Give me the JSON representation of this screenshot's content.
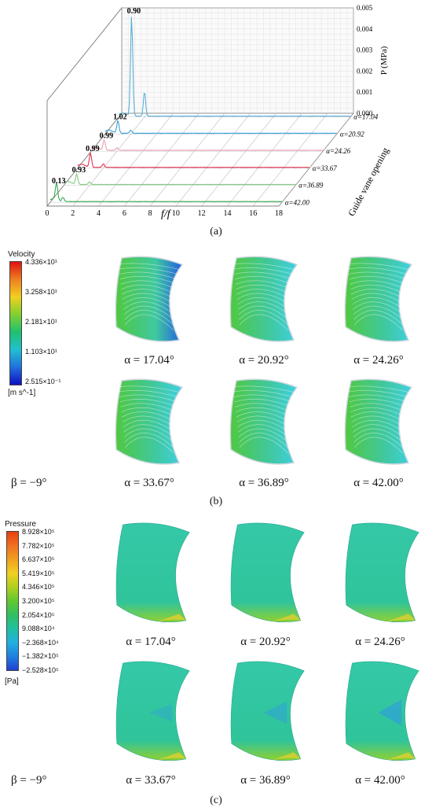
{
  "chart_data": {
    "type": "line",
    "subtype": "waterfall-3d",
    "x_axis": {
      "label": "f/f_r",
      "ticks": [
        "0",
        "2",
        "4",
        "6",
        "8",
        "10",
        "12",
        "14",
        "16",
        "18"
      ],
      "range": [
        0,
        18
      ]
    },
    "z_axis": {
      "label": "P (MPa)",
      "ticks": [
        "0.000",
        "0.001",
        "0.002",
        "0.003",
        "0.004",
        "0.005"
      ],
      "range": [
        0,
        0.005
      ]
    },
    "depth_axis": {
      "label": "Guide vane opening"
    },
    "series": [
      {
        "name": "α=17.04",
        "color": "#5aaed6",
        "peak_x": 1.0,
        "peak_y": 0.0048,
        "peak_label": "0.90"
      },
      {
        "name": "α=20.92",
        "color": "#3aa0d8",
        "peak_x": 1.0,
        "peak_y": 0.0006,
        "peak_label": "1.02"
      },
      {
        "name": "α=24.26",
        "color": "#e8a0b0",
        "peak_x": 1.0,
        "peak_y": 0.0005,
        "peak_label": "0.99"
      },
      {
        "name": "α=33.67",
        "color": "#e03550",
        "peak_x": 1.0,
        "peak_y": 0.0007,
        "peak_label": "0.99"
      },
      {
        "name": "α=36.89",
        "color": "#80cc80",
        "peak_x": 1.0,
        "peak_y": 0.0005,
        "peak_label": "0.93"
      },
      {
        "name": "α=42.00",
        "color": "#3aaa50",
        "peak_x": 0.5,
        "peak_y": 0.0008,
        "peak_label": "0.13"
      }
    ]
  },
  "labels": {
    "a": "(a)",
    "b": "(b)",
    "c": "(c)"
  },
  "velocity_legend": {
    "title": "Velocity",
    "ticks": [
      "4.336×10¹",
      "3.258×10¹",
      "2.181×10¹",
      "1.103×10¹",
      "2.515×10⁻¹"
    ],
    "unit": "[m s^-1]"
  },
  "pressure_legend": {
    "title": "Pressure",
    "ticks": [
      "8.928×10⁵",
      "7.782×10⁵",
      "6.637×10⁵",
      "5.419×10⁵",
      "4.346×10⁵",
      "3.200×10⁵",
      "2.054×10⁵",
      "9.088×10⁴",
      "−2.368×10⁴",
      "−1.382×10⁵",
      "−2.528×10⁵"
    ],
    "unit": "[Pa]"
  },
  "beta": "β = −9°",
  "captions": [
    "α = 17.04°",
    "α = 20.92°",
    "α = 24.26°",
    "α = 33.67°",
    "α = 36.89°",
    "α = 42.00°"
  ]
}
